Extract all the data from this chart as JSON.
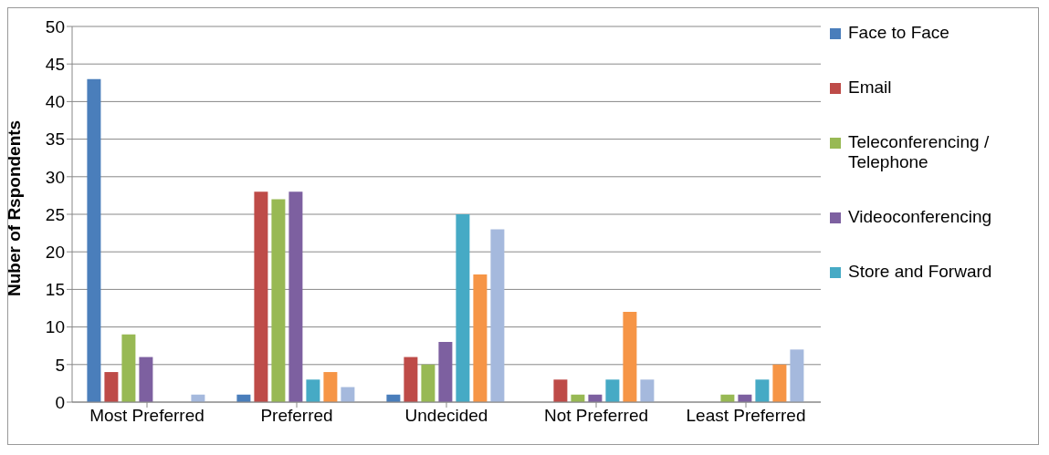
{
  "chart_data": {
    "type": "bar",
    "ylabel": "Nuber of Rspondents",
    "categories": [
      "Most Preferred",
      "Preferred",
      "Undecided",
      "Not Preferred",
      "Least Preferred"
    ],
    "series": [
      {
        "name": "Face to Face",
        "color": "#4a7ebb",
        "values": [
          43,
          1,
          1,
          0,
          0
        ]
      },
      {
        "name": "Email",
        "color": "#be4b48",
        "values": [
          4,
          28,
          6,
          3,
          0
        ]
      },
      {
        "name": "Teleconferencing / Telephone",
        "color": "#98b954",
        "values": [
          9,
          27,
          5,
          1,
          1
        ]
      },
      {
        "name": "Videoconferencing",
        "color": "#7d60a0",
        "values": [
          6,
          28,
          8,
          1,
          1
        ]
      },
      {
        "name": "Store and Forward",
        "color": "#46aac5",
        "values": [
          0,
          3,
          25,
          3,
          3
        ]
      },
      {
        "color": "#f69546",
        "values": [
          0,
          4,
          17,
          12,
          5
        ]
      },
      {
        "color": "#a5b9dd",
        "values": [
          1,
          2,
          23,
          3,
          7
        ]
      }
    ],
    "ylim": [
      0,
      50
    ],
    "yticks": [
      0,
      5,
      10,
      15,
      20,
      25,
      30,
      35,
      40,
      45,
      50
    ],
    "grid": "y",
    "legend": "right"
  }
}
